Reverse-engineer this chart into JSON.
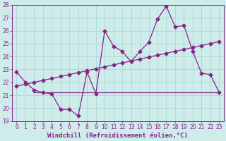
{
  "xlabel": "Windchill (Refroidissement éolien,°C)",
  "xlim": [
    -0.5,
    23.5
  ],
  "ylim": [
    19,
    28
  ],
  "yticks": [
    19,
    20,
    21,
    22,
    23,
    24,
    25,
    26,
    27,
    28
  ],
  "xticks": [
    0,
    1,
    2,
    3,
    4,
    5,
    6,
    7,
    8,
    9,
    10,
    11,
    12,
    13,
    14,
    15,
    16,
    17,
    18,
    19,
    20,
    21,
    22,
    23
  ],
  "bg_color": "#ceecea",
  "grid_color": "#aad8d5",
  "line_color": "#882288",
  "line1_x": [
    0,
    1,
    2,
    3,
    4,
    5,
    6,
    7,
    8,
    9,
    10,
    11,
    12,
    13,
    14,
    15,
    16,
    17,
    18,
    19,
    20,
    21,
    22,
    23
  ],
  "line1_y": [
    22.8,
    22.0,
    21.4,
    21.2,
    21.1,
    19.9,
    19.9,
    19.4,
    22.8,
    21.1,
    26.0,
    24.8,
    24.4,
    23.6,
    24.4,
    25.1,
    26.9,
    27.9,
    26.3,
    26.4,
    24.4,
    22.7,
    22.6,
    21.2
  ],
  "line2_x": [
    0,
    1,
    2,
    3,
    4,
    5,
    6,
    7,
    8,
    9,
    10,
    11,
    12,
    13,
    14,
    15,
    16,
    17,
    18,
    19,
    20,
    21,
    22,
    23
  ],
  "line2_y": [
    21.7,
    21.85,
    22.0,
    22.15,
    22.3,
    22.45,
    22.6,
    22.75,
    22.9,
    23.05,
    23.2,
    23.35,
    23.5,
    23.65,
    23.8,
    23.95,
    24.1,
    24.25,
    24.4,
    24.55,
    24.7,
    24.85,
    25.0,
    25.15
  ],
  "line3_x": [
    2,
    23
  ],
  "line3_y": [
    21.2,
    21.2
  ],
  "markersize": 2.5,
  "linewidth": 0.9,
  "tick_fontsize": 5.5,
  "xlabel_fontsize": 6.5,
  "tick_color": "#882288",
  "xlabel_color": "#882288",
  "spine_color": "#882288"
}
